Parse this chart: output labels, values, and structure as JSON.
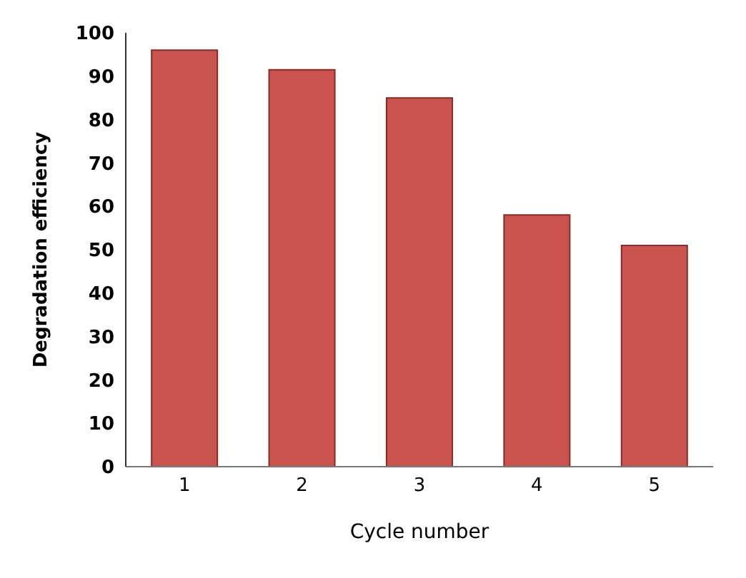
{
  "chart_data": {
    "type": "bar",
    "xlabel": "Cycle number",
    "ylabel": "Degradation efficiency",
    "categories": [
      "1",
      "2",
      "3",
      "4",
      "5"
    ],
    "values": [
      96,
      91.5,
      85,
      58,
      51
    ],
    "color": "#c9544f",
    "ylim": [
      0,
      100
    ],
    "yticks": [
      0,
      10,
      20,
      30,
      40,
      50,
      60,
      70,
      80,
      90,
      100
    ],
    "grid": false
  }
}
